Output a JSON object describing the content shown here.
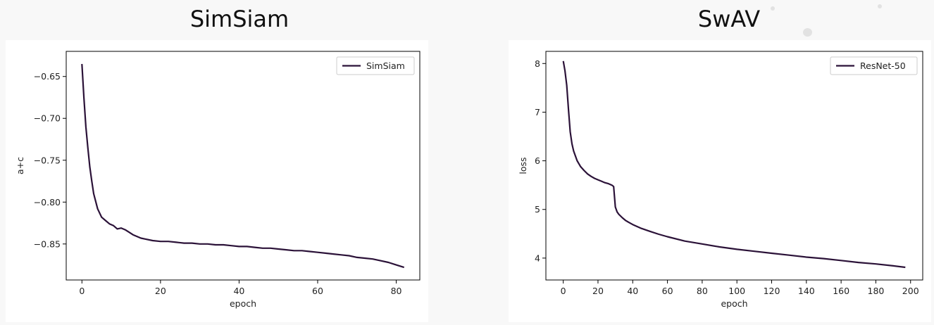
{
  "panels": [
    {
      "heading": "SimSiam"
    },
    {
      "heading": "SwAV"
    }
  ],
  "colors": {
    "line": "#2b1238",
    "page_bg": "#f8f8f8",
    "plot_bg": "#ffffff"
  },
  "chart_data": [
    {
      "type": "line",
      "title": "",
      "xlabel": "epoch",
      "ylabel": "a+c",
      "xlim": [
        -4,
        86
      ],
      "ylim": [
        -0.893,
        -0.62
      ],
      "xticks": [
        0,
        20,
        40,
        60,
        80
      ],
      "yticks": [
        -0.65,
        -0.7,
        -0.75,
        -0.8,
        -0.85
      ],
      "ytick_labels": [
        "−0.65",
        "−0.70",
        "−0.75",
        "−0.80",
        "−0.85"
      ],
      "legend": "top-right",
      "grid": false,
      "series": [
        {
          "name": "SimSiam",
          "x": [
            0,
            0.5,
            1,
            1.5,
            2,
            2.5,
            3,
            4,
            5,
            6,
            7,
            8,
            9,
            10,
            11,
            12,
            13,
            14,
            15,
            16,
            18,
            20,
            22,
            24,
            26,
            28,
            30,
            32,
            34,
            36,
            38,
            40,
            42,
            44,
            46,
            48,
            50,
            52,
            54,
            56,
            58,
            60,
            62,
            64,
            66,
            68,
            70,
            72,
            74,
            76,
            78,
            80,
            82
          ],
          "y": [
            -0.635,
            -0.675,
            -0.71,
            -0.735,
            -0.758,
            -0.775,
            -0.79,
            -0.808,
            -0.818,
            -0.822,
            -0.826,
            -0.828,
            -0.832,
            -0.831,
            -0.833,
            -0.836,
            -0.839,
            -0.841,
            -0.843,
            -0.844,
            -0.846,
            -0.847,
            -0.847,
            -0.848,
            -0.849,
            -0.849,
            -0.85,
            -0.85,
            -0.851,
            -0.851,
            -0.852,
            -0.853,
            -0.853,
            -0.854,
            -0.855,
            -0.855,
            -0.856,
            -0.857,
            -0.858,
            -0.858,
            -0.859,
            -0.86,
            -0.861,
            -0.862,
            -0.863,
            -0.864,
            -0.866,
            -0.867,
            -0.868,
            -0.87,
            -0.872,
            -0.875,
            -0.878
          ]
        }
      ]
    },
    {
      "type": "line",
      "title": "",
      "xlabel": "epoch",
      "ylabel": "loss",
      "xlim": [
        -10,
        207
      ],
      "ylim": [
        3.55,
        8.25
      ],
      "xticks": [
        0,
        20,
        40,
        60,
        80,
        100,
        120,
        140,
        160,
        180,
        200
      ],
      "yticks": [
        8,
        7,
        6,
        5,
        4
      ],
      "legend": "top-right",
      "grid": false,
      "series": [
        {
          "name": "ResNet-50",
          "x": [
            0,
            1,
            2,
            3,
            4,
            5,
            6,
            8,
            10,
            12,
            14,
            16,
            18,
            20,
            22,
            24,
            26,
            28,
            29,
            30,
            31,
            32,
            34,
            36,
            38,
            40,
            45,
            50,
            55,
            60,
            70,
            80,
            90,
            100,
            110,
            120,
            130,
            140,
            150,
            160,
            170,
            180,
            190,
            197
          ],
          "y": [
            8.05,
            7.85,
            7.55,
            7.05,
            6.6,
            6.35,
            6.2,
            6.0,
            5.88,
            5.8,
            5.73,
            5.68,
            5.64,
            5.61,
            5.58,
            5.55,
            5.53,
            5.5,
            5.47,
            5.05,
            4.95,
            4.9,
            4.83,
            4.77,
            4.73,
            4.69,
            4.61,
            4.55,
            4.49,
            4.44,
            4.35,
            4.29,
            4.23,
            4.18,
            4.14,
            4.1,
            4.06,
            4.02,
            3.99,
            3.95,
            3.91,
            3.88,
            3.84,
            3.81
          ]
        }
      ]
    }
  ]
}
